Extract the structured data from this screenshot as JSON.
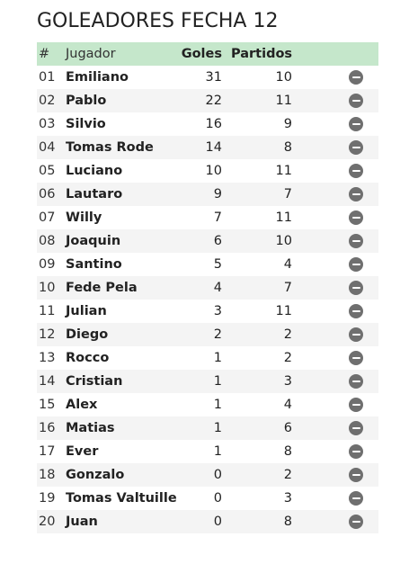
{
  "title": "GOLEADORES FECHA 12",
  "colors": {
    "header_bg": "#c5e7cb",
    "remove_icon": "#6f6f6f"
  },
  "table": {
    "headers": {
      "num": "#",
      "player": "Jugador",
      "goals": "Goles",
      "matches": "Partidos"
    },
    "rows": [
      {
        "num": "01",
        "player": "Emiliano",
        "goals": "31",
        "matches": "10",
        "action_icon": "remove-icon"
      },
      {
        "num": "02",
        "player": "Pablo",
        "goals": "22",
        "matches": "11",
        "action_icon": "remove-icon"
      },
      {
        "num": "03",
        "player": "Silvio",
        "goals": "16",
        "matches": "9",
        "action_icon": "remove-icon"
      },
      {
        "num": "04",
        "player": "Tomas Rode",
        "goals": "14",
        "matches": "8",
        "action_icon": "remove-icon"
      },
      {
        "num": "05",
        "player": "Luciano",
        "goals": "10",
        "matches": "11",
        "action_icon": "remove-icon"
      },
      {
        "num": "06",
        "player": "Lautaro",
        "goals": "9",
        "matches": "7",
        "action_icon": "remove-icon"
      },
      {
        "num": "07",
        "player": "Willy",
        "goals": "7",
        "matches": "11",
        "action_icon": "remove-icon"
      },
      {
        "num": "08",
        "player": "Joaquin",
        "goals": "6",
        "matches": "10",
        "action_icon": "remove-icon"
      },
      {
        "num": "09",
        "player": "Santino",
        "goals": "5",
        "matches": "4",
        "action_icon": "remove-icon"
      },
      {
        "num": "10",
        "player": "Fede Pela",
        "goals": "4",
        "matches": "7",
        "action_icon": "remove-icon"
      },
      {
        "num": "11",
        "player": "Julian",
        "goals": "3",
        "matches": "11",
        "action_icon": "remove-icon"
      },
      {
        "num": "12",
        "player": "Diego",
        "goals": "2",
        "matches": "2",
        "action_icon": "remove-icon"
      },
      {
        "num": "13",
        "player": "Rocco",
        "goals": "1",
        "matches": "2",
        "action_icon": "remove-icon"
      },
      {
        "num": "14",
        "player": "Cristian",
        "goals": "1",
        "matches": "3",
        "action_icon": "remove-icon"
      },
      {
        "num": "15",
        "player": "Alex",
        "goals": "1",
        "matches": "4",
        "action_icon": "remove-icon"
      },
      {
        "num": "16",
        "player": "Matias",
        "goals": "1",
        "matches": "6",
        "action_icon": "remove-icon"
      },
      {
        "num": "17",
        "player": "Ever",
        "goals": "1",
        "matches": "8",
        "action_icon": "remove-icon"
      },
      {
        "num": "18",
        "player": "Gonzalo",
        "goals": "0",
        "matches": "2",
        "action_icon": "remove-icon"
      },
      {
        "num": "19",
        "player": "Tomas Valtuille",
        "goals": "0",
        "matches": "3",
        "action_icon": "remove-icon"
      },
      {
        "num": "20",
        "player": "Juan",
        "goals": "0",
        "matches": "8",
        "action_icon": "remove-icon"
      }
    ]
  }
}
